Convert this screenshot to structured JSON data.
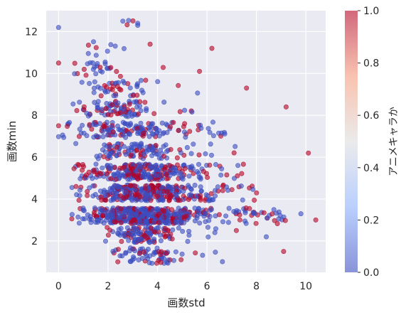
{
  "chart_data": {
    "type": "scatter",
    "xlabel": "画数std",
    "ylabel": "画数min",
    "xlim": [
      -0.5,
      10.8
    ],
    "ylim": [
      0.5,
      13.0
    ],
    "x_ticks": [
      0,
      2,
      4,
      6,
      8,
      10
    ],
    "y_ticks": [
      2,
      4,
      6,
      8,
      10,
      12
    ],
    "grid": true,
    "colorbar": {
      "label": "アニメキャラか",
      "range": [
        0.0,
        1.0
      ],
      "ticks": [
        "0.0",
        "0.2",
        "0.4",
        "0.6",
        "0.8",
        "1.0"
      ],
      "low_color": "#3b4cc0",
      "high_color": "#b40426"
    },
    "clusters": [
      {
        "y": 1.3,
        "x_range": [
          1.9,
          7.5
        ],
        "x_peak": 3.6,
        "count": 70
      },
      {
        "y": 2.3,
        "x_range": [
          1.9,
          7.2
        ],
        "x_peak": 3.4,
        "count": 120
      },
      {
        "y": 3.2,
        "x_range": [
          0.5,
          9.2
        ],
        "x_peak": 3.5,
        "count": 460
      },
      {
        "y": 4.3,
        "x_range": [
          0.5,
          8.2
        ],
        "x_peak": 3.6,
        "count": 330
      },
      {
        "y": 5.3,
        "x_range": [
          0.5,
          7.7
        ],
        "x_peak": 3.4,
        "count": 270
      },
      {
        "y": 6.3,
        "x_range": [
          0.5,
          7.2
        ],
        "x_peak": 3.0,
        "count": 110
      },
      {
        "y": 7.3,
        "x_range": [
          0.0,
          7.0
        ],
        "x_peak": 2.8,
        "count": 150
      },
      {
        "y": 8.3,
        "x_range": [
          0.5,
          6.2
        ],
        "x_peak": 2.5,
        "count": 85
      },
      {
        "y": 9.3,
        "x_range": [
          0.5,
          5.8
        ],
        "x_peak": 2.3,
        "count": 45
      },
      {
        "y": 10.2,
        "x_range": [
          0.5,
          5.8
        ],
        "x_peak": 1.6,
        "count": 25
      },
      {
        "y": 11.2,
        "x_range": [
          0.5,
          6.2
        ],
        "x_peak": 1.5,
        "count": 9
      },
      {
        "y": 12.3,
        "x_range": [
          2.5,
          3.6
        ],
        "x_peak": 3.0,
        "count": 3
      }
    ],
    "points": [
      {
        "x": 0.0,
        "y": 12.2,
        "v": 0.0
      },
      {
        "x": 0.0,
        "y": 10.5,
        "v": 1.0
      },
      {
        "x": 0.0,
        "y": 7.5,
        "v": 1.0
      },
      {
        "x": 10.1,
        "y": 6.2,
        "v": 1.0
      },
      {
        "x": 10.4,
        "y": 3.0,
        "v": 1.0
      },
      {
        "x": 9.8,
        "y": 3.3,
        "v": 0.0
      },
      {
        "x": 9.2,
        "y": 8.4,
        "v": 1.0
      },
      {
        "x": 9.1,
        "y": 1.5,
        "v": 1.0
      },
      {
        "x": 8.4,
        "y": 2.2,
        "v": 0.0
      },
      {
        "x": 7.6,
        "y": 9.3,
        "v": 1.0
      },
      {
        "x": 6.2,
        "y": 11.2,
        "v": 1.0
      },
      {
        "x": 2.6,
        "y": 12.5,
        "v": 0.0
      },
      {
        "x": 3.2,
        "y": 12.4,
        "v": 0.0
      },
      {
        "x": 3.2,
        "y": 12.3,
        "v": 0.0
      },
      {
        "x": 3.7,
        "y": 11.4,
        "v": 1.0
      },
      {
        "x": 5.7,
        "y": 10.1,
        "v": 1.0
      }
    ]
  }
}
